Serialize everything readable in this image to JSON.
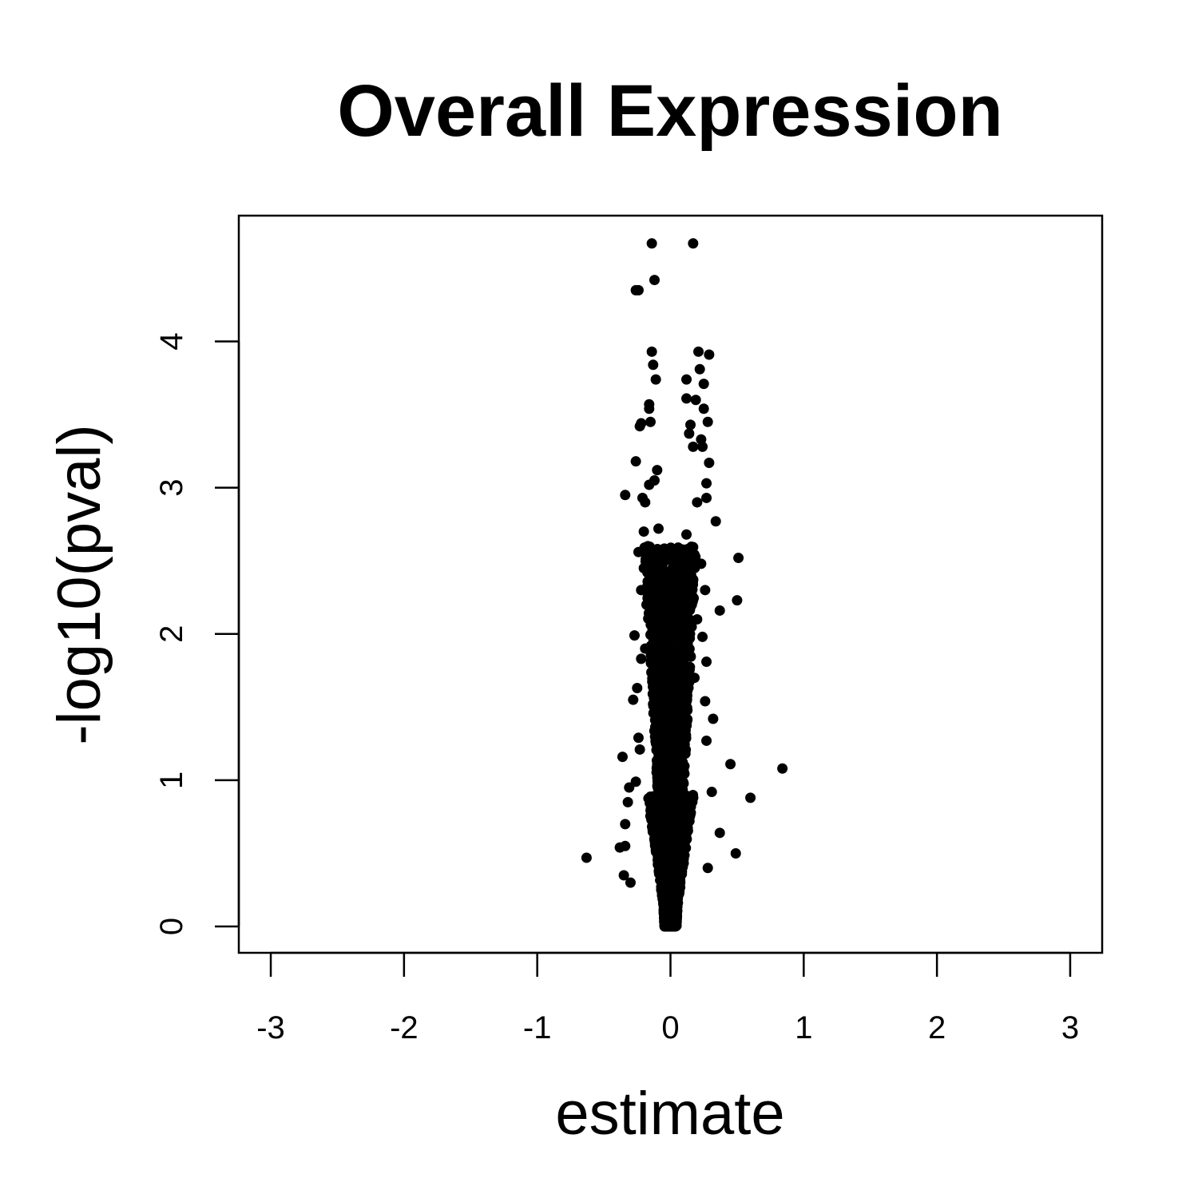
{
  "chart_data": {
    "type": "scatter",
    "title": "Overall Expression",
    "xlabel": "estimate",
    "ylabel": "-log10(pval)",
    "xlim": [
      -3.24,
      3.24
    ],
    "ylim": [
      -0.18,
      4.86
    ],
    "x_ticks": [
      -3,
      -2,
      -1,
      0,
      1,
      2,
      3
    ],
    "x_tick_labels": [
      "-3",
      "-2",
      "-1",
      "0",
      "1",
      "2",
      "3"
    ],
    "y_ticks": [
      0,
      1,
      2,
      3,
      4
    ],
    "y_tick_labels": [
      "0",
      "1",
      "2",
      "3",
      "4"
    ],
    "grid": false,
    "point_color": "#000000",
    "series": [
      {
        "name": "genes",
        "points": [
          [
            -0.14,
            4.67
          ],
          [
            0.17,
            4.67
          ],
          [
            -0.12,
            4.42
          ],
          [
            -0.26,
            4.35
          ],
          [
            -0.24,
            4.35
          ],
          [
            -0.14,
            3.93
          ],
          [
            0.21,
            3.93
          ],
          [
            0.29,
            3.91
          ],
          [
            -0.13,
            3.84
          ],
          [
            0.22,
            3.81
          ],
          [
            -0.11,
            3.74
          ],
          [
            0.12,
            3.74
          ],
          [
            0.25,
            3.71
          ],
          [
            0.12,
            3.61
          ],
          [
            0.19,
            3.6
          ],
          [
            -0.16,
            3.57
          ],
          [
            -0.16,
            3.54
          ],
          [
            0.25,
            3.54
          ],
          [
            -0.15,
            3.45
          ],
          [
            -0.23,
            3.42
          ],
          [
            0.15,
            3.43
          ],
          [
            0.28,
            3.45
          ],
          [
            -0.22,
            3.44
          ],
          [
            0.14,
            3.37
          ],
          [
            0.23,
            3.33
          ],
          [
            0.17,
            3.28
          ],
          [
            0.24,
            3.28
          ],
          [
            -0.26,
            3.18
          ],
          [
            0.29,
            3.17
          ],
          [
            -0.1,
            3.12
          ],
          [
            -0.12,
            3.05
          ],
          [
            0.27,
            3.03
          ],
          [
            -0.16,
            3.02
          ],
          [
            -0.34,
            2.95
          ],
          [
            -0.21,
            2.93
          ],
          [
            0.27,
            2.93
          ],
          [
            0.34,
            2.77
          ],
          [
            -0.09,
            2.72
          ],
          [
            0.12,
            2.68
          ],
          [
            0.51,
            2.52
          ],
          [
            -0.24,
            2.56
          ],
          [
            0.23,
            2.48
          ],
          [
            -0.2,
            2.45
          ],
          [
            -0.22,
            2.3
          ],
          [
            0.26,
            2.3
          ],
          [
            0.5,
            2.23
          ],
          [
            0.37,
            2.16
          ],
          [
            -0.27,
            1.99
          ],
          [
            0.24,
            1.98
          ],
          [
            -0.22,
            1.83
          ],
          [
            0.27,
            1.81
          ],
          [
            -0.25,
            1.63
          ],
          [
            0.26,
            1.54
          ],
          [
            -0.28,
            1.55
          ],
          [
            0.32,
            1.42
          ],
          [
            -0.24,
            1.29
          ],
          [
            0.27,
            1.27
          ],
          [
            -0.23,
            1.21
          ],
          [
            -0.36,
            1.16
          ],
          [
            0.45,
            1.11
          ],
          [
            0.84,
            1.08
          ],
          [
            -0.26,
            0.99
          ],
          [
            0.31,
            0.92
          ],
          [
            -0.31,
            0.95
          ],
          [
            0.6,
            0.88
          ],
          [
            -0.32,
            0.85
          ],
          [
            -0.34,
            0.7
          ],
          [
            0.37,
            0.64
          ],
          [
            -0.38,
            0.54
          ],
          [
            -0.34,
            0.55
          ],
          [
            0.49,
            0.5
          ],
          [
            -0.63,
            0.47
          ],
          [
            -0.35,
            0.35
          ],
          [
            -0.3,
            0.3
          ],
          [
            0.28,
            0.4
          ],
          [
            -0.19,
            2.9
          ],
          [
            -0.2,
            2.7
          ],
          [
            -0.17,
            2.6
          ],
          [
            -0.18,
            2.2
          ],
          [
            0.2,
            2.9
          ],
          [
            0.19,
            2.5
          ],
          [
            0.2,
            2.1
          ],
          [
            0.16,
            2.2
          ],
          [
            -0.19,
            1.9
          ],
          [
            0.18,
            1.7
          ]
        ]
      }
    ]
  }
}
